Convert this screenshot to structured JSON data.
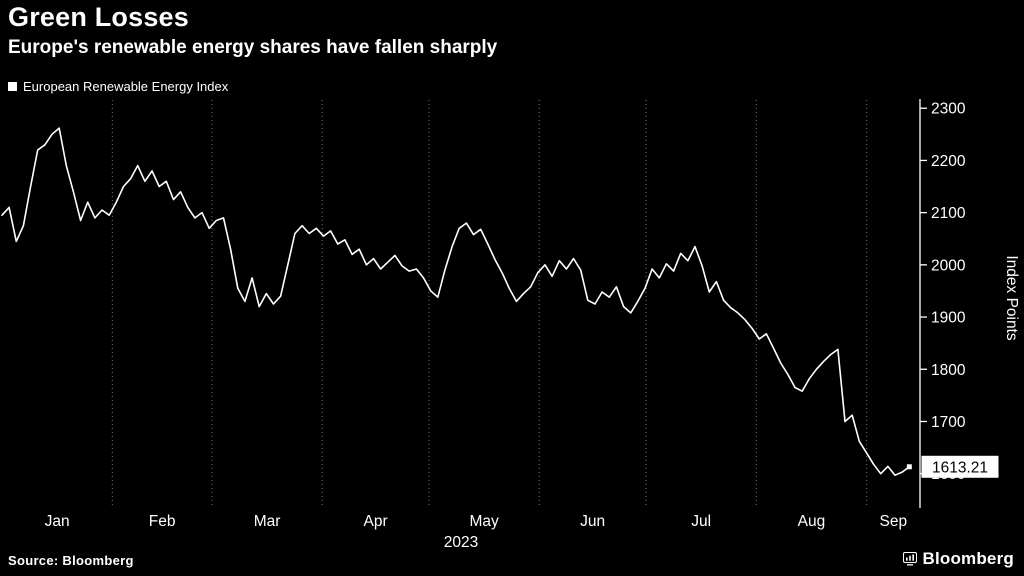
{
  "title": "Green Losses",
  "subtitle": "Europe's renewable energy shares have fallen sharply",
  "legend": {
    "label": "European Renewable Energy Index"
  },
  "source_note": "Source: Bloomberg",
  "logo_text": "Bloomberg",
  "colors": {
    "background": "#000000",
    "line": "#ffffff",
    "grid": "#777777",
    "axis": "#ffffff",
    "text": "#ffffff",
    "last_label_bg": "#ffffff",
    "last_label_text": "#000000"
  },
  "chart_data": {
    "type": "line",
    "title": "Green Losses",
    "subtitle": "Europe's renewable energy shares have fallen sharply",
    "ylabel": "Index Points",
    "year_label": "2023",
    "legend_entries": [
      "European Renewable Energy Index"
    ],
    "x_months": [
      "Jan",
      "Feb",
      "Mar",
      "Apr",
      "May",
      "Jun",
      "Jul",
      "Aug",
      "Sep"
    ],
    "month_boundaries_days": [
      0,
      31,
      59,
      90,
      120,
      151,
      181,
      212,
      243
    ],
    "x_total_days": 258,
    "x_data_span_days": 255,
    "yticks": [
      1600,
      1700,
      1800,
      1900,
      2000,
      2100,
      2200,
      2300
    ],
    "ylim": [
      1540,
      2310
    ],
    "grid": "vertical-dotted",
    "legend_position": "top-left",
    "last_value": 1613.21,
    "last_value_label": "1613.21",
    "series": [
      {
        "name": "European Renewable Energy Index",
        "values": [
          2095,
          2110,
          2045,
          2075,
          2150,
          2220,
          2230,
          2250,
          2262,
          2190,
          2140,
          2085,
          2120,
          2090,
          2105,
          2095,
          2120,
          2150,
          2165,
          2190,
          2160,
          2180,
          2150,
          2160,
          2125,
          2140,
          2110,
          2090,
          2100,
          2070,
          2085,
          2090,
          2030,
          1955,
          1930,
          1975,
          1920,
          1945,
          1925,
          1940,
          2000,
          2060,
          2075,
          2060,
          2070,
          2055,
          2065,
          2040,
          2048,
          2020,
          2030,
          2000,
          2012,
          1992,
          2005,
          2018,
          1998,
          1988,
          1992,
          1975,
          1950,
          1938,
          1990,
          2035,
          2070,
          2080,
          2058,
          2068,
          2040,
          2010,
          1985,
          1955,
          1930,
          1945,
          1958,
          1985,
          2000,
          1978,
          2008,
          1992,
          2012,
          1990,
          1932,
          1925,
          1948,
          1938,
          1958,
          1920,
          1908,
          1930,
          1955,
          1992,
          1975,
          2002,
          1988,
          2022,
          2008,
          2035,
          1998,
          1948,
          1968,
          1932,
          1918,
          1908,
          1895,
          1878,
          1858,
          1868,
          1840,
          1812,
          1790,
          1765,
          1758,
          1782,
          1800,
          1815,
          1828,
          1838,
          1700,
          1712,
          1662,
          1640,
          1618,
          1600,
          1614,
          1597,
          1603,
          1613.21
        ]
      }
    ]
  }
}
